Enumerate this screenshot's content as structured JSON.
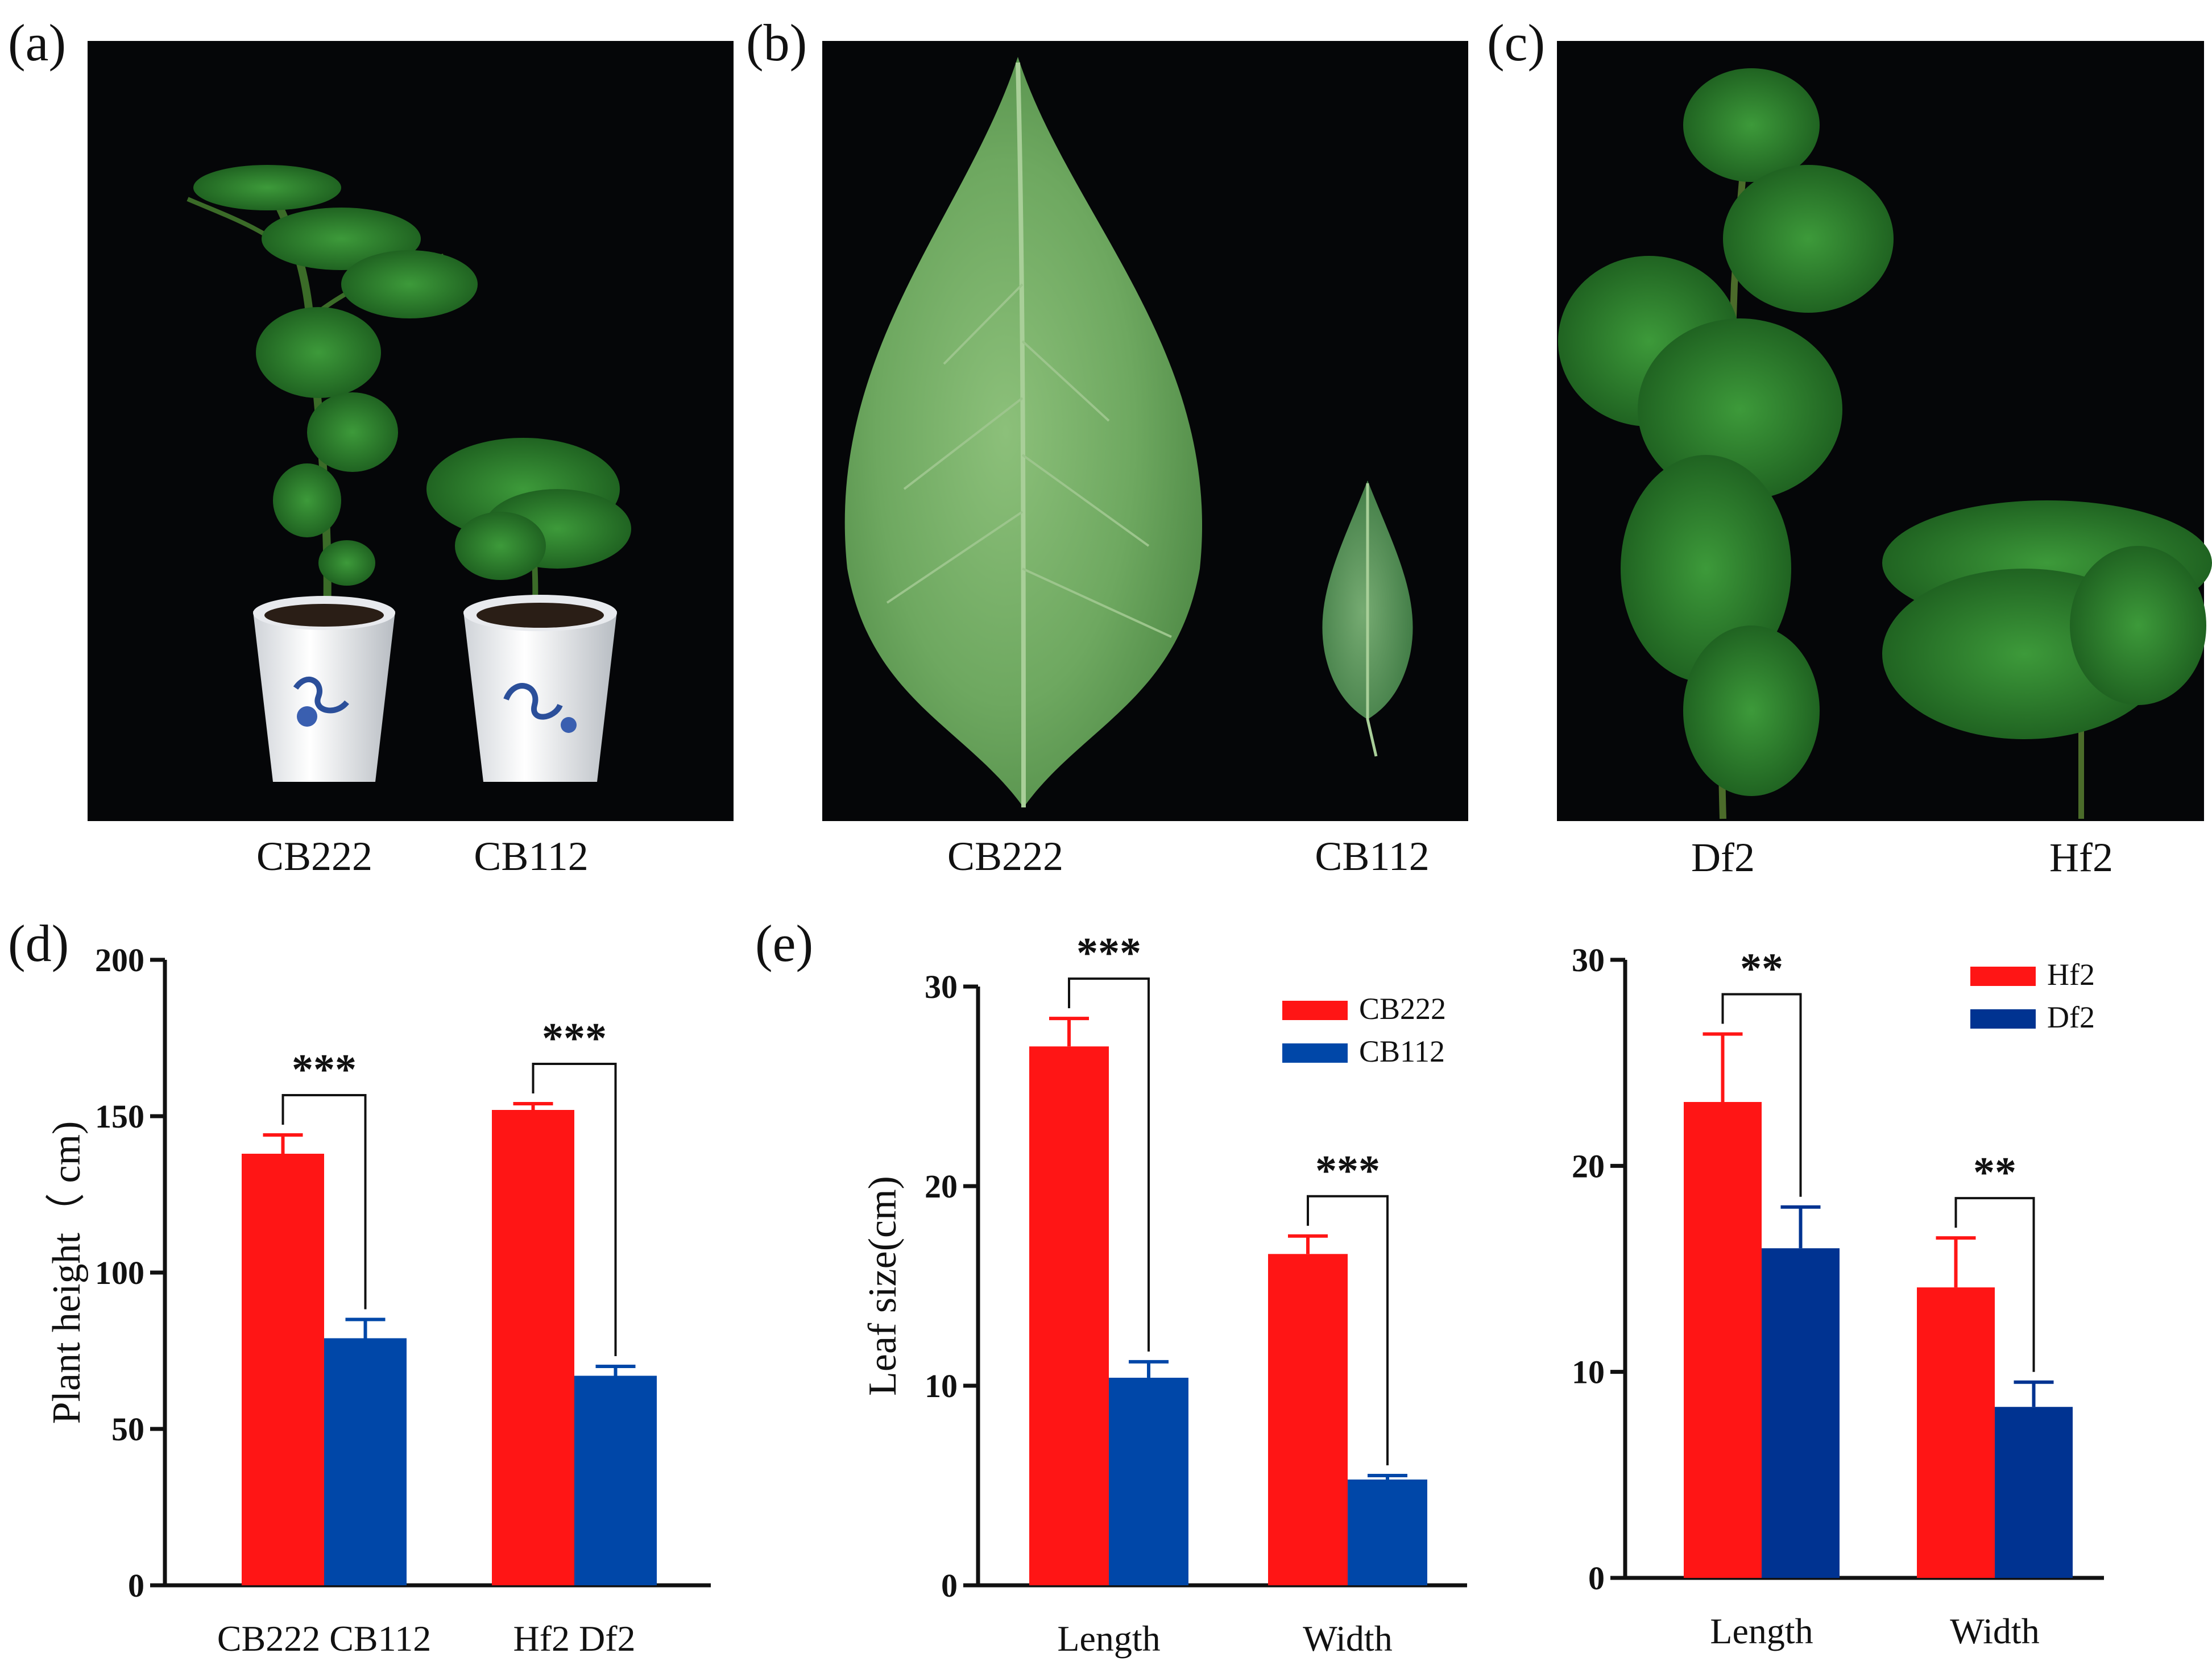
{
  "photos": [
    {
      "letter": "(a)",
      "labels": [
        "CB222",
        "CB112"
      ]
    },
    {
      "letter": "(b)",
      "labels": [
        "CB222",
        "CB112"
      ]
    },
    {
      "letter": "(c)",
      "labels": [
        "Df2",
        "Hf2"
      ]
    }
  ],
  "panels": {
    "d": "(d)",
    "e": "(e)"
  },
  "colors": {
    "red": "#ff1515",
    "blue": "#0047a8",
    "navy": "#003391",
    "photo_bg": "#050608"
  },
  "chart_data": [
    {
      "type": "bar",
      "categories": [
        "CB222 CB112",
        "Hf2 Df2"
      ],
      "series": [
        {
          "values": [
            138,
            152
          ],
          "errors": [
            6,
            2
          ]
        },
        {
          "values": [
            79,
            67
          ],
          "errors": [
            6,
            3
          ]
        }
      ],
      "ylabel": "Plant height（ cm)",
      "ylim": [
        0,
        200
      ],
      "yticks": [
        "0",
        "50",
        "100",
        "150",
        "200"
      ],
      "significance": [
        "***",
        "***"
      ],
      "legend": []
    },
    {
      "type": "bar",
      "categories": [
        "Length",
        "Width"
      ],
      "series": [
        {
          "name": "CB222",
          "values": [
            27.0,
            16.6
          ],
          "errors": [
            1.4,
            0.9
          ]
        },
        {
          "name": "CB112",
          "values": [
            10.4,
            5.3
          ],
          "errors": [
            0.8,
            0.2
          ]
        }
      ],
      "ylabel": "Leaf size(cm)",
      "ylim": [
        0,
        30
      ],
      "yticks": [
        "0",
        "10",
        "20",
        "30"
      ],
      "significance": [
        "***",
        "***"
      ],
      "legend_position": "top-right"
    },
    {
      "type": "bar",
      "categories": [
        "Length",
        "Width"
      ],
      "series": [
        {
          "name": "Hf2",
          "values": [
            23.1,
            14.1
          ],
          "errors": [
            3.3,
            2.4
          ]
        },
        {
          "name": "Df2",
          "values": [
            16.0,
            8.3
          ],
          "errors": [
            2.0,
            1.2
          ]
        }
      ],
      "ylabel": "",
      "ylim": [
        0,
        30
      ],
      "yticks": [
        "0",
        "10",
        "20",
        "30"
      ],
      "significance": [
        "**",
        "**"
      ],
      "legend_position": "top-right"
    }
  ]
}
